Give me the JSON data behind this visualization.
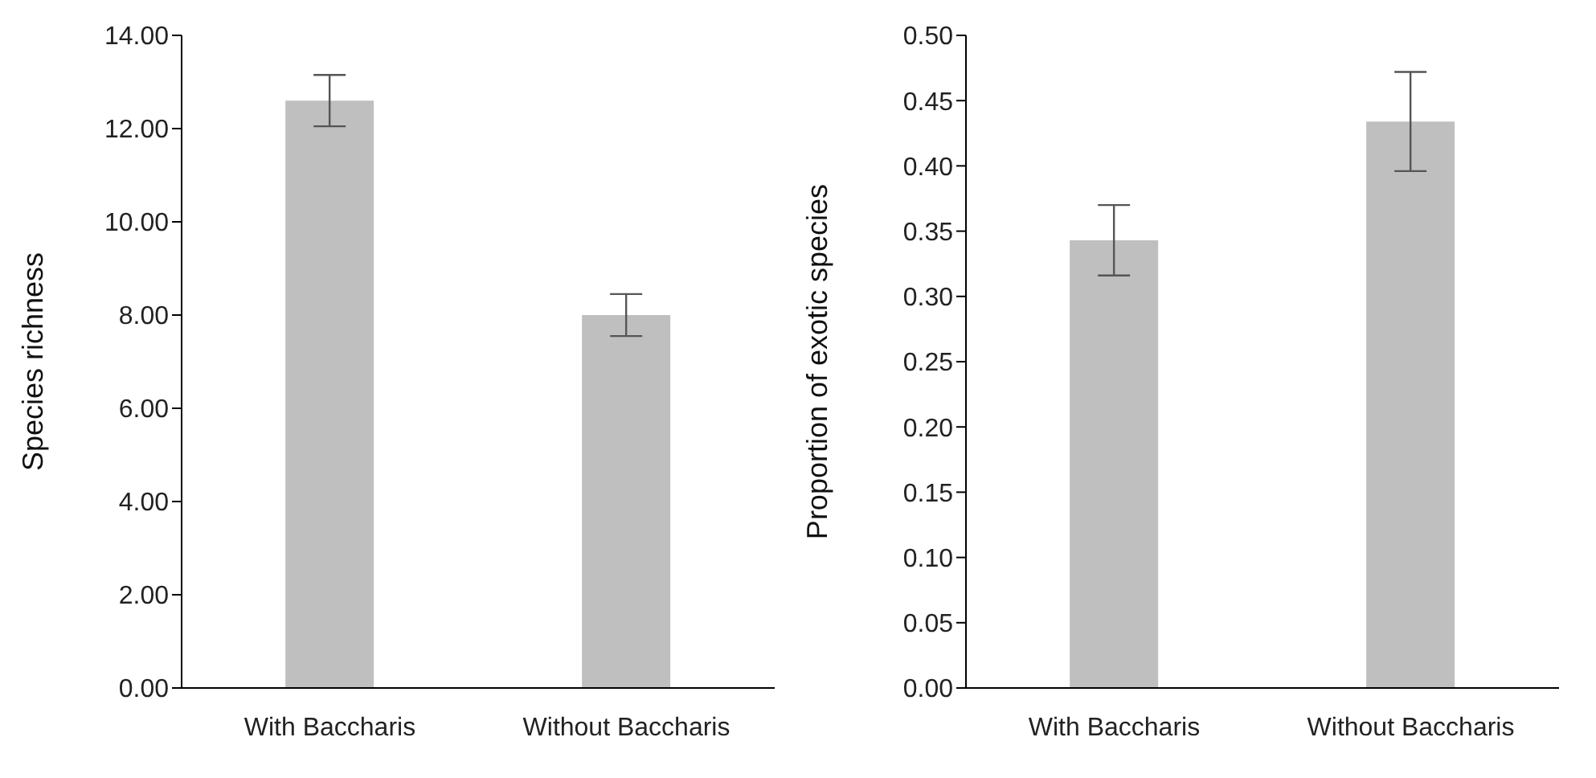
{
  "chart_data": [
    {
      "type": "bar",
      "ylabel": "Species richness",
      "categories": [
        "With Baccharis",
        "Without Baccharis"
      ],
      "values": [
        12.6,
        8.0
      ],
      "errors": [
        0.55,
        0.45
      ],
      "color": "#bfbfbf",
      "ylim": [
        0,
        14
      ],
      "yticks": [
        {
          "value": 0,
          "label": "0.00"
        },
        {
          "value": 2,
          "label": "2.00"
        },
        {
          "value": 4,
          "label": "4.00"
        },
        {
          "value": 6,
          "label": "6.00"
        },
        {
          "value": 8,
          "label": "8.00"
        },
        {
          "value": 10,
          "label": "10.00"
        },
        {
          "value": 12,
          "label": "12.00"
        },
        {
          "value": 14,
          "label": "14.00"
        }
      ],
      "grid": false,
      "legend": false
    },
    {
      "type": "bar",
      "ylabel": "Proportion of exotic species",
      "categories": [
        "With Baccharis",
        "Without Baccharis"
      ],
      "values": [
        0.343,
        0.434
      ],
      "errors": [
        0.027,
        0.038
      ],
      "color": "#bfbfbf",
      "ylim": [
        0,
        0.5
      ],
      "yticks": [
        {
          "value": 0,
          "label": "0.00"
        },
        {
          "value": 0.05,
          "label": "0.05"
        },
        {
          "value": 0.1,
          "label": "0.10"
        },
        {
          "value": 0.15,
          "label": "0.15"
        },
        {
          "value": 0.2,
          "label": "0.20"
        },
        {
          "value": 0.25,
          "label": "0.25"
        },
        {
          "value": 0.3,
          "label": "0.30"
        },
        {
          "value": 0.35,
          "label": "0.35"
        },
        {
          "value": 0.4,
          "label": "0.40"
        },
        {
          "value": 0.45,
          "label": "0.45"
        },
        {
          "value": 0.5,
          "label": "0.50"
        }
      ],
      "grid": false,
      "legend": false
    }
  ]
}
